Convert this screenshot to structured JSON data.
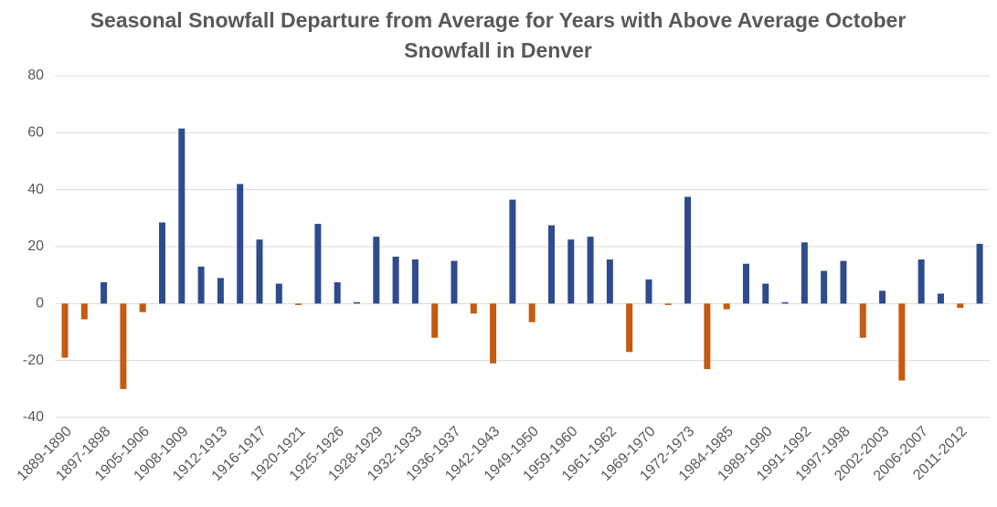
{
  "chart_data": {
    "type": "bar",
    "title": "Seasonal Snowfall Departure from Average for Years with Above Average October Snowfall in Denver",
    "categories": [
      "1889-1890",
      null,
      "1897-1898",
      null,
      "1905-1906",
      null,
      "1908-1909",
      null,
      "1912-1913",
      null,
      "1916-1917",
      null,
      "1920-1921",
      null,
      "1925-1926",
      null,
      "1928-1929",
      null,
      "1932-1933",
      null,
      "1936-1937",
      null,
      "1942-1943",
      null,
      "1949-1950",
      null,
      "1959-1960",
      null,
      "1961-1962",
      null,
      "1969-1970",
      null,
      "1972-1973",
      null,
      "1984-1985",
      null,
      "1989-1990",
      null,
      "1991-1992",
      null,
      "1997-1998",
      null,
      "2002-2003",
      null,
      "2006-2007",
      null,
      "2011-2012",
      null
    ],
    "values": [
      -19,
      -5.5,
      7.5,
      -30,
      -3,
      28.5,
      61.5,
      13,
      9,
      42,
      22.5,
      7,
      -0.5,
      28,
      7.5,
      0.5,
      23.5,
      16.5,
      15.5,
      -12,
      15,
      -3.5,
      -21,
      36.5,
      -6.5,
      27.5,
      22.5,
      23.5,
      15.5,
      -17,
      8.5,
      -0.5,
      37.5,
      -23,
      -2,
      14,
      7,
      0.5,
      21.5,
      11.5,
      15,
      -12,
      4.5,
      -27,
      15.5,
      3.5,
      -1.5,
      21
    ],
    "positive_color": "#2f4b8f",
    "negative_color": "#c55a11",
    "ylim": [
      -40,
      80
    ],
    "yticks": [
      -40,
      -20,
      0,
      20,
      40,
      60,
      80
    ],
    "grid": true
  }
}
